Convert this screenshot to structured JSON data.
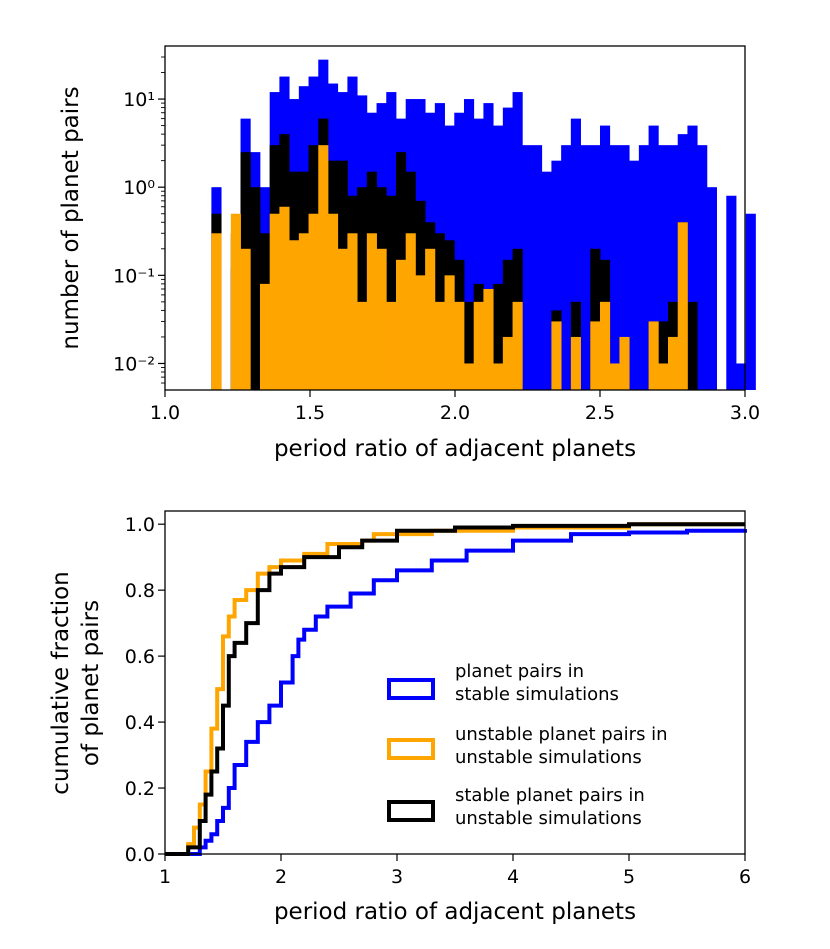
{
  "colors": {
    "stable_sims": "#0000ff",
    "unstable_pairs": "#ffa500",
    "stable_pairs_unstable_sims": "#000000"
  },
  "chart_data": [
    {
      "type": "bar",
      "subtype": "stacked-histogram-log",
      "xlabel": "period ratio of adjacent planets",
      "ylabel": "number of planet pairs",
      "xlim": [
        1.0,
        3.0
      ],
      "ylim": [
        0.005,
        40
      ],
      "yscale": "log",
      "xticks": [
        1.0,
        1.5,
        2.0,
        2.5,
        3.0
      ],
      "xtick_labels": [
        "1.0",
        "1.5",
        "2.0",
        "2.5",
        "3.0"
      ],
      "yticks": [
        0.01,
        0.1,
        1,
        10
      ],
      "ytick_labels": [
        "10⁻²",
        "10⁻¹",
        "10⁰",
        "10¹"
      ],
      "bin_start": 1.16,
      "bin_width": 0.0335,
      "series": [
        {
          "name": "planet pairs in stable simulations",
          "color": "#0000ff",
          "values": [
            1.0,
            0,
            0.12,
            6,
            2.5,
            1.0,
            12,
            18,
            10,
            14,
            18,
            28,
            15,
            12,
            18,
            11,
            7,
            9,
            12,
            6,
            10,
            10,
            7,
            9,
            5,
            7,
            10,
            6,
            9,
            5,
            8,
            12,
            3,
            3,
            1.5,
            2,
            3,
            6,
            3,
            3,
            5,
            3,
            3,
            2,
            3,
            5,
            3,
            3,
            4,
            5,
            3,
            1,
            0,
            0.8,
            0.01,
            0.5
          ]
        },
        {
          "name": "stable planet pairs in unstable simulations",
          "color": "#000000",
          "values": [
            0.5,
            0,
            0.3,
            2.5,
            1.0,
            0.3,
            3,
            4,
            1.5,
            1.5,
            3,
            6,
            2,
            2,
            0.8,
            1.0,
            1.5,
            1.0,
            0.8,
            2.5,
            1.5,
            0.7,
            0.4,
            0.3,
            0.25,
            0.15,
            0.05,
            0.08,
            0.03,
            0.08,
            0.15,
            0.2,
            0,
            0,
            0,
            0.04,
            0,
            0.05,
            0,
            0.2,
            0.15,
            0,
            0,
            0,
            0,
            0.01,
            0.03,
            0.05,
            0.4,
            0.05,
            0,
            0,
            0,
            0,
            0,
            0
          ]
        },
        {
          "name": "unstable planet pairs in unstable simulations",
          "color": "#ffa500",
          "values": [
            0.3,
            0,
            0.5,
            0.2,
            0,
            0.08,
            0.5,
            0.6,
            0.25,
            0.3,
            0.5,
            3,
            0.5,
            0.2,
            0.3,
            0.05,
            0.3,
            0.2,
            0.05,
            0.15,
            0.3,
            0.1,
            0.2,
            0.05,
            0.1,
            0.05,
            0.01,
            0.05,
            0.07,
            0.01,
            0.02,
            0.05,
            0,
            0,
            0,
            0.03,
            0,
            0.02,
            0,
            0.03,
            0.05,
            0.01,
            0.02,
            0,
            0,
            0.03,
            0.01,
            0.02,
            0.4,
            0,
            0,
            0,
            0,
            0,
            0,
            0
          ]
        }
      ]
    },
    {
      "type": "line",
      "subtype": "cumulative-step",
      "xlabel": "period ratio of adjacent planets",
      "ylabel_lines": [
        "cumulative fraction",
        "of planet pairs"
      ],
      "xlim": [
        1,
        6
      ],
      "ylim": [
        0.0,
        1.04
      ],
      "xticks": [
        1,
        2,
        3,
        4,
        5,
        6
      ],
      "xtick_labels": [
        "1",
        "2",
        "3",
        "4",
        "5",
        "6"
      ],
      "yticks": [
        0.0,
        0.2,
        0.4,
        0.6,
        0.8,
        1.0
      ],
      "ytick_labels": [
        "0.0",
        "0.2",
        "0.4",
        "0.6",
        "0.8",
        "1.0"
      ],
      "legend_position": "center-right",
      "series": [
        {
          "name": "planet pairs in stable simulations",
          "legend_lines": [
            "planet pairs in",
            "stable simulations"
          ],
          "color": "#0000ff",
          "x": [
            1.0,
            1.3,
            1.35,
            1.4,
            1.45,
            1.5,
            1.55,
            1.6,
            1.7,
            1.8,
            1.9,
            2.0,
            2.1,
            2.15,
            2.2,
            2.3,
            2.4,
            2.6,
            2.8,
            3.0,
            3.3,
            3.6,
            4.0,
            4.5,
            5.0,
            5.5,
            6.0
          ],
          "y": [
            0.0,
            0.02,
            0.04,
            0.06,
            0.1,
            0.14,
            0.2,
            0.27,
            0.34,
            0.4,
            0.45,
            0.52,
            0.6,
            0.65,
            0.68,
            0.72,
            0.75,
            0.79,
            0.83,
            0.86,
            0.89,
            0.92,
            0.95,
            0.97,
            0.975,
            0.98,
            0.985
          ]
        },
        {
          "name": "unstable planet pairs in unstable simulations",
          "legend_lines": [
            "unstable planet pairs in",
            "unstable simulations"
          ],
          "color": "#ffa500",
          "x": [
            1.0,
            1.2,
            1.25,
            1.3,
            1.35,
            1.4,
            1.45,
            1.5,
            1.55,
            1.6,
            1.7,
            1.8,
            1.9,
            2.0,
            2.2,
            2.4,
            2.7,
            2.8,
            3.3,
            4.0,
            5.0,
            6.0
          ],
          "y": [
            0.0,
            0.03,
            0.08,
            0.15,
            0.25,
            0.38,
            0.5,
            0.66,
            0.72,
            0.77,
            0.8,
            0.85,
            0.87,
            0.89,
            0.91,
            0.94,
            0.95,
            0.97,
            0.98,
            0.99,
            1.0,
            1.0
          ]
        },
        {
          "name": "stable planet pairs in unstable simulations",
          "legend_lines": [
            "stable planet pairs in",
            "unstable simulations"
          ],
          "color": "#000000",
          "x": [
            1.0,
            1.2,
            1.3,
            1.35,
            1.4,
            1.45,
            1.5,
            1.55,
            1.6,
            1.7,
            1.8,
            1.9,
            2.0,
            2.2,
            2.5,
            2.7,
            3.0,
            3.5,
            4.0,
            5.0,
            6.0
          ],
          "y": [
            0.0,
            0.02,
            0.1,
            0.18,
            0.25,
            0.32,
            0.45,
            0.6,
            0.64,
            0.7,
            0.8,
            0.85,
            0.87,
            0.9,
            0.93,
            0.95,
            0.98,
            0.99,
            0.995,
            1.0,
            1.0
          ]
        }
      ]
    }
  ]
}
